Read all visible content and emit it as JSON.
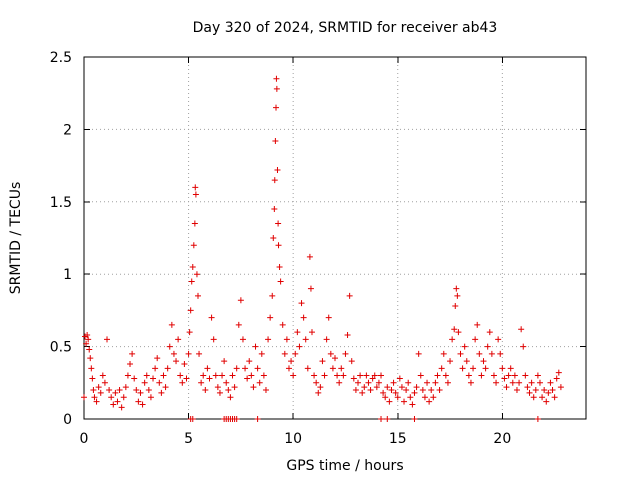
{
  "chart_data": {
    "type": "scatter",
    "title": "Day 320 of 2024, SRMTID for receiver ab43",
    "xlabel": "GPS time / hours",
    "ylabel": "SRMTID / TECUs",
    "xlim": [
      0,
      24
    ],
    "ylim": [
      0,
      2.5
    ],
    "grid": true,
    "marker": "+",
    "color": "#e00000",
    "x_ticks": [
      0,
      5,
      10,
      15,
      20
    ],
    "x_tick_labels": [
      "0",
      "5",
      "10",
      "15",
      "20"
    ],
    "y_ticks": [
      0,
      0.5,
      1,
      1.5,
      2,
      2.5
    ],
    "y_tick_labels": [
      "0",
      "0.5",
      "1",
      "1.5",
      "2",
      "2.5"
    ],
    "series": [
      {
        "name": "SRMTID",
        "points": [
          [
            0.0,
            0.15
          ],
          [
            0.05,
            0.57
          ],
          [
            0.1,
            0.52
          ],
          [
            0.15,
            0.58
          ],
          [
            0.2,
            0.55
          ],
          [
            0.25,
            0.48
          ],
          [
            0.3,
            0.42
          ],
          [
            0.35,
            0.35
          ],
          [
            0.4,
            0.28
          ],
          [
            0.45,
            0.2
          ],
          [
            0.5,
            0.15
          ],
          [
            0.6,
            0.12
          ],
          [
            0.7,
            0.22
          ],
          [
            0.8,
            0.18
          ],
          [
            0.9,
            0.3
          ],
          [
            1.0,
            0.25
          ],
          [
            1.1,
            0.55
          ],
          [
            1.2,
            0.2
          ],
          [
            1.3,
            0.15
          ],
          [
            1.4,
            0.1
          ],
          [
            1.5,
            0.18
          ],
          [
            1.6,
            0.12
          ],
          [
            1.7,
            0.2
          ],
          [
            1.8,
            0.08
          ],
          [
            1.9,
            0.15
          ],
          [
            2.0,
            0.22
          ],
          [
            2.1,
            0.3
          ],
          [
            2.2,
            0.38
          ],
          [
            2.3,
            0.45
          ],
          [
            2.4,
            0.28
          ],
          [
            2.5,
            0.2
          ],
          [
            2.6,
            0.12
          ],
          [
            2.7,
            0.18
          ],
          [
            2.8,
            0.1
          ],
          [
            2.9,
            0.25
          ],
          [
            3.0,
            0.3
          ],
          [
            3.1,
            0.2
          ],
          [
            3.2,
            0.15
          ],
          [
            3.3,
            0.28
          ],
          [
            3.4,
            0.35
          ],
          [
            3.5,
            0.42
          ],
          [
            3.6,
            0.25
          ],
          [
            3.7,
            0.18
          ],
          [
            3.8,
            0.3
          ],
          [
            3.9,
            0.22
          ],
          [
            4.0,
            0.35
          ],
          [
            4.1,
            0.5
          ],
          [
            4.2,
            0.65
          ],
          [
            4.3,
            0.45
          ],
          [
            4.4,
            0.4
          ],
          [
            4.5,
            0.55
          ],
          [
            4.6,
            0.3
          ],
          [
            4.7,
            0.25
          ],
          [
            4.8,
            0.38
          ],
          [
            4.9,
            0.28
          ],
          [
            5.0,
            0.45
          ],
          [
            5.05,
            0.6
          ],
          [
            5.1,
            0.75
          ],
          [
            5.15,
            0.95
          ],
          [
            5.2,
            1.05
          ],
          [
            5.25,
            1.2
          ],
          [
            5.3,
            1.35
          ],
          [
            5.32,
            1.6
          ],
          [
            5.35,
            1.55
          ],
          [
            5.4,
            1.0
          ],
          [
            5.45,
            0.85
          ],
          [
            5.5,
            0.45
          ],
          [
            5.6,
            0.25
          ],
          [
            5.7,
            0.3
          ],
          [
            5.8,
            0.2
          ],
          [
            5.9,
            0.35
          ],
          [
            6.0,
            0.28
          ],
          [
            6.1,
            0.7
          ],
          [
            6.2,
            0.55
          ],
          [
            6.3,
            0.3
          ],
          [
            6.4,
            0.22
          ],
          [
            6.5,
            0.18
          ],
          [
            6.6,
            0.3
          ],
          [
            6.7,
            0.4
          ],
          [
            6.8,
            0.25
          ],
          [
            6.9,
            0.2
          ],
          [
            7.0,
            0.15
          ],
          [
            7.1,
            0.3
          ],
          [
            7.2,
            0.22
          ],
          [
            7.3,
            0.35
          ],
          [
            7.4,
            0.65
          ],
          [
            7.5,
            0.82
          ],
          [
            7.6,
            0.55
          ],
          [
            7.7,
            0.35
          ],
          [
            7.8,
            0.28
          ],
          [
            7.9,
            0.4
          ],
          [
            8.0,
            0.3
          ],
          [
            8.1,
            0.22
          ],
          [
            8.2,
            0.5
          ],
          [
            8.3,
            0.35
          ],
          [
            8.4,
            0.25
          ],
          [
            8.5,
            0.45
          ],
          [
            8.6,
            0.3
          ],
          [
            8.7,
            0.2
          ],
          [
            8.8,
            0.55
          ],
          [
            8.9,
            0.7
          ],
          [
            9.0,
            0.85
          ],
          [
            9.05,
            1.25
          ],
          [
            9.1,
            1.45
          ],
          [
            9.12,
            1.65
          ],
          [
            9.15,
            1.92
          ],
          [
            9.18,
            2.15
          ],
          [
            9.2,
            2.35
          ],
          [
            9.22,
            2.28
          ],
          [
            9.25,
            1.72
          ],
          [
            9.28,
            1.35
          ],
          [
            9.3,
            1.2
          ],
          [
            9.35,
            1.05
          ],
          [
            9.4,
            0.95
          ],
          [
            9.5,
            0.65
          ],
          [
            9.6,
            0.45
          ],
          [
            9.7,
            0.55
          ],
          [
            9.8,
            0.35
          ],
          [
            9.9,
            0.4
          ],
          [
            10.0,
            0.3
          ],
          [
            10.1,
            0.45
          ],
          [
            10.2,
            0.6
          ],
          [
            10.3,
            0.5
          ],
          [
            10.4,
            0.8
          ],
          [
            10.5,
            0.7
          ],
          [
            10.6,
            0.55
          ],
          [
            10.7,
            0.35
          ],
          [
            10.8,
            1.12
          ],
          [
            10.85,
            0.9
          ],
          [
            10.9,
            0.6
          ],
          [
            11.0,
            0.3
          ],
          [
            11.1,
            0.25
          ],
          [
            11.2,
            0.18
          ],
          [
            11.3,
            0.22
          ],
          [
            11.4,
            0.4
          ],
          [
            11.5,
            0.3
          ],
          [
            11.6,
            0.55
          ],
          [
            11.7,
            0.7
          ],
          [
            11.8,
            0.45
          ],
          [
            11.9,
            0.35
          ],
          [
            12.0,
            0.42
          ],
          [
            12.1,
            0.3
          ],
          [
            12.2,
            0.25
          ],
          [
            12.3,
            0.35
          ],
          [
            12.4,
            0.3
          ],
          [
            12.5,
            0.45
          ],
          [
            12.6,
            0.58
          ],
          [
            12.7,
            0.85
          ],
          [
            12.8,
            0.4
          ],
          [
            12.9,
            0.28
          ],
          [
            13.0,
            0.2
          ],
          [
            13.1,
            0.25
          ],
          [
            13.2,
            0.3
          ],
          [
            13.3,
            0.18
          ],
          [
            13.4,
            0.22
          ],
          [
            13.5,
            0.3
          ],
          [
            13.6,
            0.25
          ],
          [
            13.7,
            0.2
          ],
          [
            13.8,
            0.28
          ],
          [
            13.9,
            0.3
          ],
          [
            14.0,
            0.22
          ],
          [
            14.1,
            0.25
          ],
          [
            14.2,
            0.3
          ],
          [
            14.3,
            0.18
          ],
          [
            14.4,
            0.15
          ],
          [
            14.5,
            0.22
          ],
          [
            14.6,
            0.12
          ],
          [
            14.7,
            0.2
          ],
          [
            14.8,
            0.25
          ],
          [
            14.9,
            0.18
          ],
          [
            15.0,
            0.15
          ],
          [
            15.1,
            0.28
          ],
          [
            15.2,
            0.22
          ],
          [
            15.3,
            0.12
          ],
          [
            15.4,
            0.2
          ],
          [
            15.5,
            0.25
          ],
          [
            15.6,
            0.15
          ],
          [
            15.7,
            0.1
          ],
          [
            15.8,
            0.18
          ],
          [
            15.9,
            0.22
          ],
          [
            16.0,
            0.45
          ],
          [
            16.1,
            0.3
          ],
          [
            16.2,
            0.2
          ],
          [
            16.3,
            0.15
          ],
          [
            16.4,
            0.25
          ],
          [
            16.5,
            0.12
          ],
          [
            16.6,
            0.2
          ],
          [
            16.7,
            0.15
          ],
          [
            16.8,
            0.25
          ],
          [
            16.9,
            0.3
          ],
          [
            17.0,
            0.2
          ],
          [
            17.1,
            0.35
          ],
          [
            17.2,
            0.45
          ],
          [
            17.3,
            0.3
          ],
          [
            17.4,
            0.25
          ],
          [
            17.5,
            0.4
          ],
          [
            17.6,
            0.55
          ],
          [
            17.7,
            0.62
          ],
          [
            17.75,
            0.78
          ],
          [
            17.8,
            0.9
          ],
          [
            17.85,
            0.85
          ],
          [
            17.9,
            0.6
          ],
          [
            18.0,
            0.45
          ],
          [
            18.1,
            0.35
          ],
          [
            18.2,
            0.5
          ],
          [
            18.3,
            0.4
          ],
          [
            18.4,
            0.3
          ],
          [
            18.5,
            0.25
          ],
          [
            18.6,
            0.35
          ],
          [
            18.7,
            0.55
          ],
          [
            18.8,
            0.65
          ],
          [
            18.9,
            0.45
          ],
          [
            19.0,
            0.3
          ],
          [
            19.1,
            0.4
          ],
          [
            19.2,
            0.35
          ],
          [
            19.3,
            0.5
          ],
          [
            19.4,
            0.6
          ],
          [
            19.5,
            0.45
          ],
          [
            19.6,
            0.3
          ],
          [
            19.7,
            0.25
          ],
          [
            19.8,
            0.55
          ],
          [
            19.9,
            0.45
          ],
          [
            20.0,
            0.35
          ],
          [
            20.1,
            0.28
          ],
          [
            20.2,
            0.22
          ],
          [
            20.3,
            0.3
          ],
          [
            20.4,
            0.35
          ],
          [
            20.5,
            0.25
          ],
          [
            20.6,
            0.3
          ],
          [
            20.7,
            0.2
          ],
          [
            20.8,
            0.25
          ],
          [
            20.9,
            0.62
          ],
          [
            21.0,
            0.5
          ],
          [
            21.1,
            0.3
          ],
          [
            21.2,
            0.22
          ],
          [
            21.3,
            0.18
          ],
          [
            21.4,
            0.25
          ],
          [
            21.5,
            0.15
          ],
          [
            21.6,
            0.2
          ],
          [
            21.7,
            0.3
          ],
          [
            21.8,
            0.25
          ],
          [
            21.9,
            0.15
          ],
          [
            22.0,
            0.2
          ],
          [
            22.1,
            0.12
          ],
          [
            22.2,
            0.18
          ],
          [
            22.3,
            0.25
          ],
          [
            22.4,
            0.2
          ],
          [
            22.5,
            0.15
          ],
          [
            22.6,
            0.28
          ],
          [
            22.7,
            0.32
          ],
          [
            22.8,
            0.22
          ]
        ]
      }
    ],
    "baseline_x": [
      5.1,
      5.2,
      6.7,
      6.8,
      6.9,
      7.0,
      7.1,
      7.2,
      7.3,
      8.3,
      14.2,
      14.5,
      15.8,
      21.7
    ]
  }
}
